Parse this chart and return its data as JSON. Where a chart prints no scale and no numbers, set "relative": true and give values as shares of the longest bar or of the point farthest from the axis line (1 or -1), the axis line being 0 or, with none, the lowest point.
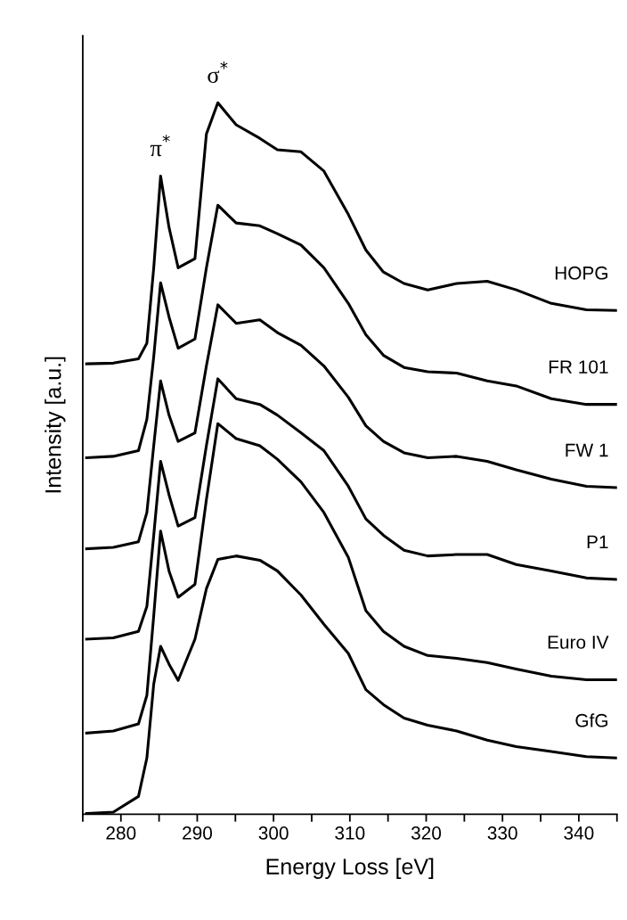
{
  "chart_data": {
    "type": "line",
    "relative": true,
    "xlabel": "Energy Loss [eV]",
    "ylabel": "Intensity [a.u.]",
    "xlim": [
      275,
      345
    ],
    "xticks": [
      {
        "value": 275,
        "label": null
      },
      280,
      {
        "value": 285,
        "label": null
      },
      290,
      {
        "value": 295,
        "label": null
      },
      300,
      {
        "value": 305,
        "label": null
      },
      310,
      {
        "value": 315,
        "label": null
      },
      320,
      {
        "value": 325,
        "label": null
      },
      330,
      {
        "value": 335,
        "label": null
      },
      340,
      {
        "value": 345,
        "label": null
      }
    ],
    "grid": false,
    "legend": false,
    "marker": "none",
    "line_style": "solid",
    "x": [
      275.5,
      279,
      282.3,
      283.4,
      284.3,
      285.2,
      286.3,
      287.5,
      289.7,
      291.2,
      292.7,
      295.1,
      298.2,
      300.5,
      303.6,
      306.6,
      309.8,
      312.1,
      314.4,
      317.1,
      320.2,
      324.0,
      328.0,
      331.8,
      336.4,
      341.0,
      344.9
    ],
    "series": [
      {
        "name": "HOPG",
        "color": "#000000",
        "values": [
          0.633,
          0.634,
          0.64,
          0.662,
          0.768,
          0.897,
          0.825,
          0.768,
          0.781,
          0.956,
          1.0,
          0.969,
          0.95,
          0.934,
          0.931,
          0.904,
          0.843,
          0.793,
          0.762,
          0.746,
          0.737,
          0.746,
          0.749,
          0.737,
          0.718,
          0.709,
          0.708
        ]
      },
      {
        "name": "FR 101",
        "color": "#000000",
        "values": [
          0.501,
          0.503,
          0.511,
          0.555,
          0.643,
          0.747,
          0.699,
          0.655,
          0.668,
          0.768,
          0.856,
          0.831,
          0.827,
          0.816,
          0.8,
          0.768,
          0.718,
          0.674,
          0.645,
          0.628,
          0.622,
          0.62,
          0.609,
          0.602,
          0.584,
          0.576,
          0.576
        ]
      },
      {
        "name": "FW 1",
        "color": "#000000",
        "values": [
          0.373,
          0.375,
          0.383,
          0.424,
          0.518,
          0.609,
          0.561,
          0.524,
          0.536,
          0.63,
          0.716,
          0.69,
          0.695,
          0.677,
          0.659,
          0.63,
          0.586,
          0.546,
          0.524,
          0.508,
          0.501,
          0.503,
          0.496,
          0.484,
          0.471,
          0.461,
          0.459
        ]
      },
      {
        "name": "P1",
        "color": "#000000",
        "values": [
          0.246,
          0.248,
          0.257,
          0.292,
          0.392,
          0.496,
          0.449,
          0.405,
          0.417,
          0.518,
          0.612,
          0.584,
          0.576,
          0.561,
          0.536,
          0.511,
          0.461,
          0.415,
          0.392,
          0.371,
          0.363,
          0.365,
          0.365,
          0.351,
          0.342,
          0.332,
          0.33
        ]
      },
      {
        "name": "Euro IV",
        "color": "#000000",
        "values": [
          0.114,
          0.117,
          0.127,
          0.167,
          0.279,
          0.398,
          0.342,
          0.305,
          0.323,
          0.442,
          0.549,
          0.528,
          0.518,
          0.499,
          0.467,
          0.424,
          0.361,
          0.286,
          0.257,
          0.236,
          0.223,
          0.219,
          0.213,
          0.204,
          0.194,
          0.189,
          0.189
        ]
      },
      {
        "name": "GfG",
        "color": "#000000",
        "values": [
          0.001,
          0.003,
          0.025,
          0.079,
          0.183,
          0.236,
          0.211,
          0.188,
          0.246,
          0.317,
          0.358,
          0.363,
          0.357,
          0.342,
          0.308,
          0.267,
          0.226,
          0.175,
          0.154,
          0.135,
          0.125,
          0.117,
          0.104,
          0.095,
          0.088,
          0.081,
          0.079
        ]
      }
    ],
    "annotations": [
      {
        "text": "π$^{*}$",
        "x": 285.2,
        "y": 0.897
      },
      {
        "text": "σ$^{*}$",
        "x": 292.7,
        "y": 1.0
      }
    ]
  }
}
